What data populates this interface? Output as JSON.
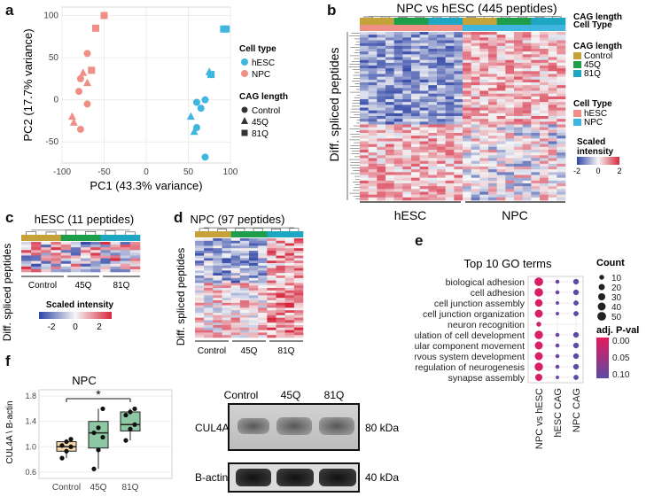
{
  "panel_labels": {
    "a": "a",
    "b": "b",
    "c": "c",
    "d": "d",
    "e": "e",
    "f": "f"
  },
  "colors": {
    "hESC": "#3fb6e0",
    "NPC": "#f08f86",
    "control": "#c6a33a",
    "q45": "#1e9e4a",
    "q81": "#1ea6c2",
    "heat_low": "#2f45a6",
    "heat_mid": "#f5f5f5",
    "heat_high": "#d7263d",
    "go_low": "#e6195f",
    "go_high": "#5b4aa6",
    "box_fill": "#f6d9a7",
    "box_fill2": "#8ec7a3"
  },
  "panel_a": {
    "xlabel": "PC1 (43.3% variance)",
    "ylabel": "PC2 (17.7% variance)",
    "xticks": [
      -100,
      -50,
      0,
      50,
      100
    ],
    "yticks": [
      -50,
      0,
      50,
      100
    ],
    "legend_celltype_title": "Cell type",
    "legend_celltype": [
      "hESC",
      "NPC"
    ],
    "legend_cag_title": "CAG length",
    "legend_cag": [
      "Control",
      "45Q",
      "81Q"
    ]
  },
  "chart_data": [
    {
      "type": "scatter",
      "id": "pca",
      "xlabel": "PC1 (43.3% variance)",
      "ylabel": "PC2 (17.7% variance)",
      "xlim": [
        -100,
        100
      ],
      "ylim": [
        -75,
        110
      ],
      "points": [
        {
          "x": -50,
          "y": 100,
          "cell": "NPC",
          "cag": "81Q"
        },
        {
          "x": -60,
          "y": 85,
          "cell": "NPC",
          "cag": "81Q"
        },
        {
          "x": -70,
          "y": 55,
          "cell": "NPC",
          "cag": "Control"
        },
        {
          "x": -65,
          "y": 35,
          "cell": "NPC",
          "cag": "81Q"
        },
        {
          "x": -75,
          "y": 32,
          "cell": "NPC",
          "cag": "45Q"
        },
        {
          "x": -78,
          "y": 25,
          "cell": "NPC",
          "cag": "Control"
        },
        {
          "x": -70,
          "y": 20,
          "cell": "NPC",
          "cag": "45Q"
        },
        {
          "x": -80,
          "y": 10,
          "cell": "NPC",
          "cag": "Control"
        },
        {
          "x": -70,
          "y": -5,
          "cell": "NPC",
          "cag": "Control"
        },
        {
          "x": -88,
          "y": -20,
          "cell": "NPC",
          "cag": "45Q"
        },
        {
          "x": -86,
          "y": -27,
          "cell": "NPC",
          "cag": "45Q"
        },
        {
          "x": -78,
          "y": -35,
          "cell": "NPC",
          "cag": "Control"
        },
        {
          "x": 95,
          "y": 84,
          "cell": "hESC",
          "cag": "81Q"
        },
        {
          "x": 92,
          "y": 84,
          "cell": "hESC",
          "cag": "81Q"
        },
        {
          "x": 75,
          "y": 33,
          "cell": "hESC",
          "cag": "45Q"
        },
        {
          "x": 77,
          "y": 30,
          "cell": "hESC",
          "cag": "81Q"
        },
        {
          "x": 70,
          "y": 0,
          "cell": "hESC",
          "cag": "Control"
        },
        {
          "x": 60,
          "y": -3,
          "cell": "hESC",
          "cag": "Control"
        },
        {
          "x": 65,
          "y": -10,
          "cell": "hESC",
          "cag": "Control"
        },
        {
          "x": 53,
          "y": -20,
          "cell": "hESC",
          "cag": "45Q"
        },
        {
          "x": 60,
          "y": -33,
          "cell": "hESC",
          "cag": "Control"
        },
        {
          "x": 57,
          "y": -38,
          "cell": "hESC",
          "cag": "45Q"
        },
        {
          "x": 70,
          "y": -68,
          "cell": "hESC",
          "cag": "Control"
        }
      ]
    },
    {
      "type": "heatmap",
      "id": "npc_vs_hesc",
      "title": "NPC vs hESC (445 peptides)",
      "ylabel": "Diff. spliced peptides",
      "column_groups": [
        "hESC",
        "NPC"
      ],
      "top_rows": [
        "CAG length",
        "Cell Type"
      ],
      "color_scale": {
        "title": "Scaled intensity",
        "min": -2,
        "mid": 0,
        "max": 2
      },
      "pattern": "upper block hESC high / NPC low-to-high mixed; lower block hESC low / NPC high"
    },
    {
      "type": "heatmap",
      "id": "hesc_cag",
      "title": "hESC (11 peptides)",
      "ylabel": "Diff. spliced peptides",
      "column_groups": [
        "Control",
        "45Q",
        "81Q"
      ],
      "color_scale": {
        "title": "Scaled intensity",
        "min": -2,
        "mid": 0,
        "max": 2
      }
    },
    {
      "type": "heatmap",
      "id": "npc_cag",
      "title": "NPC (97 peptides)",
      "ylabel": "Diff. spliced peptides",
      "column_groups": [
        "Control",
        "45Q",
        "81Q"
      ]
    },
    {
      "type": "scatter",
      "id": "go_dotplot",
      "title": "Top 10 GO terms",
      "categories_x": [
        "NPC vs hESC",
        "hESC CAG",
        "NPC CAG"
      ],
      "terms": [
        "biological adhesion",
        "cell adhesion",
        "cell junction assembly",
        "cell junction organization",
        "neuron recognition",
        "regulation of cell development",
        "regulation of cellular component movement",
        "regulation of nervous system development",
        "regulation of neurogenesis",
        "synapse assembly"
      ],
      "counts": [
        [
          50,
          5,
          15
        ],
        [
          48,
          5,
          15
        ],
        [
          35,
          3,
          12
        ],
        [
          40,
          3,
          12
        ],
        [
          10,
          0,
          0
        ],
        [
          45,
          5,
          15
        ],
        [
          40,
          5,
          15
        ],
        [
          40,
          5,
          15
        ],
        [
          45,
          5,
          15
        ],
        [
          30,
          3,
          12
        ]
      ],
      "pvals": [
        [
          0.01,
          0.09,
          0.1
        ],
        [
          0.01,
          0.09,
          0.1
        ],
        [
          0.01,
          0.09,
          0.1
        ],
        [
          0.01,
          0.09,
          0.1
        ],
        [
          0.02,
          null,
          null
        ],
        [
          0.01,
          0.09,
          0.1
        ],
        [
          0.01,
          0.09,
          0.1
        ],
        [
          0.01,
          0.09,
          0.1
        ],
        [
          0.01,
          0.09,
          0.1
        ],
        [
          0.01,
          0.09,
          0.1
        ]
      ],
      "size_legend_title": "Count",
      "size_legend": [
        10,
        20,
        30,
        40,
        50
      ],
      "color_legend_title": "adj. P-val",
      "color_legend_ticks": [
        "0.00",
        "0.05",
        "0.10"
      ]
    },
    {
      "type": "box",
      "id": "cul4a",
      "title": "NPC",
      "ylabel": "CUL4A \\ B-actin",
      "categories": [
        "Control",
        "45Q",
        "81Q"
      ],
      "ylim": [
        0.5,
        1.9
      ],
      "yticks": [
        "0.6",
        "1.0",
        "1.4",
        "1.8"
      ],
      "boxes": [
        {
          "q1": 0.93,
          "median": 1.0,
          "q3": 1.08,
          "min": 0.82,
          "max": 1.12,
          "points": [
            0.82,
            0.93,
            1.0,
            1.02,
            1.08,
            1.12
          ]
        },
        {
          "q1": 0.98,
          "median": 1.22,
          "q3": 1.4,
          "min": 0.65,
          "max": 1.6,
          "points": [
            0.65,
            0.95,
            1.15,
            1.22,
            1.3,
            1.6
          ]
        },
        {
          "q1": 1.25,
          "median": 1.35,
          "q3": 1.55,
          "min": 1.1,
          "max": 1.6,
          "points": [
            1.1,
            1.28,
            1.35,
            1.5,
            1.55,
            1.6
          ]
        }
      ],
      "significance": "*"
    }
  ],
  "panel_b": {
    "title": "NPC vs hESC (445 peptides)",
    "row_cag": "CAG length",
    "row_cell": "Cell Type",
    "ylabel": "Diff. spliced peptides",
    "group_hESC": "hESC",
    "group_NPC": "NPC",
    "legend_cag_title": "CAG length",
    "legend_cag": [
      "Control",
      "45Q",
      "81Q"
    ],
    "legend_cell_title": "Cell Type",
    "legend_cell": [
      "hESC",
      "NPC"
    ],
    "scale_title_1": "Scaled",
    "scale_title_2": "intensity",
    "scale_min": "-2",
    "scale_mid": "0",
    "scale_max": "2"
  },
  "panel_c": {
    "title": "hESC (11 peptides)",
    "ylabel": "Diff. spliced peptides",
    "groups": [
      "Control",
      "45Q",
      "81Q"
    ],
    "scale_title": "Scaled intensity",
    "scale_min": "-2",
    "scale_mid": "0",
    "scale_max": "2"
  },
  "panel_d": {
    "title": "NPC (97 peptides)",
    "ylabel": "Diff. spliced peptides",
    "groups": [
      "Control",
      "45Q",
      "81Q"
    ]
  },
  "panel_e": {
    "title": "Top 10 GO terms",
    "count_title": "Count",
    "pval_title": "adj. P-val"
  },
  "panel_f": {
    "title": "NPC",
    "ylabel": "CUL4A \\ B-actin",
    "star": "*",
    "blot_lanes": [
      "Control",
      "45Q",
      "81Q"
    ],
    "blot_rows": [
      {
        "label": "CUL4A",
        "kda": "80 kDa"
      },
      {
        "label": "B-actin",
        "kda": "40 kDa"
      }
    ]
  }
}
